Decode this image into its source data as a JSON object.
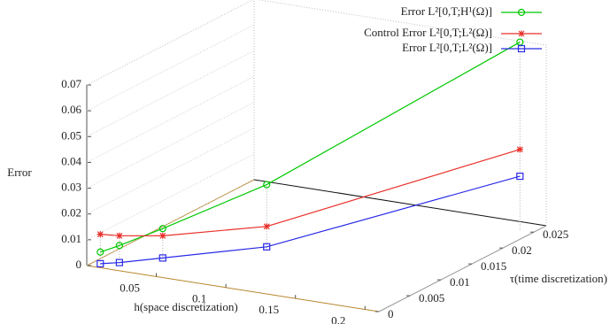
{
  "chart_data": {
    "type": "line3d",
    "xlabel": "h(space discretization)",
    "ylabel": "τ(time discretization)",
    "zlabel": "Error",
    "x": [
      0.00625,
      0.015,
      0.035,
      0.083,
      0.2
    ],
    "y": [
      0.00078,
      0.0019,
      0.0044,
      0.0104,
      0.025
    ],
    "xlim": [
      0,
      0.21
    ],
    "ylim": [
      0,
      0.027
    ],
    "zlim": [
      0,
      0.07
    ],
    "xticks": [
      0.05,
      0.1,
      0.15,
      0.2
    ],
    "yticks": [
      0,
      0.005,
      0.01,
      0.015,
      0.02,
      0.025
    ],
    "zticks": [
      0,
      0.01,
      0.02,
      0.03,
      0.04,
      0.05,
      0.06,
      0.07
    ],
    "series": [
      {
        "name": "Error L²[0,T;H¹(Ω)]",
        "color": "#00c800",
        "marker": "circle",
        "values": [
          0.0048,
          0.0067,
          0.0119,
          0.0256,
          0.0728
        ]
      },
      {
        "name": "Control Error L²[0,T;L²(Ω)]",
        "color": "#e8312a",
        "marker": "star",
        "values": [
          0.0117,
          0.0105,
          0.0091,
          0.0094,
          0.0312
        ]
      },
      {
        "name": "Error L²[0,T;L²(Ω)]",
        "color": "#2a2ae8",
        "marker": "square",
        "values": [
          0.0003,
          0.0001,
          0.0005,
          0.0015,
          0.0208
        ]
      }
    ]
  }
}
